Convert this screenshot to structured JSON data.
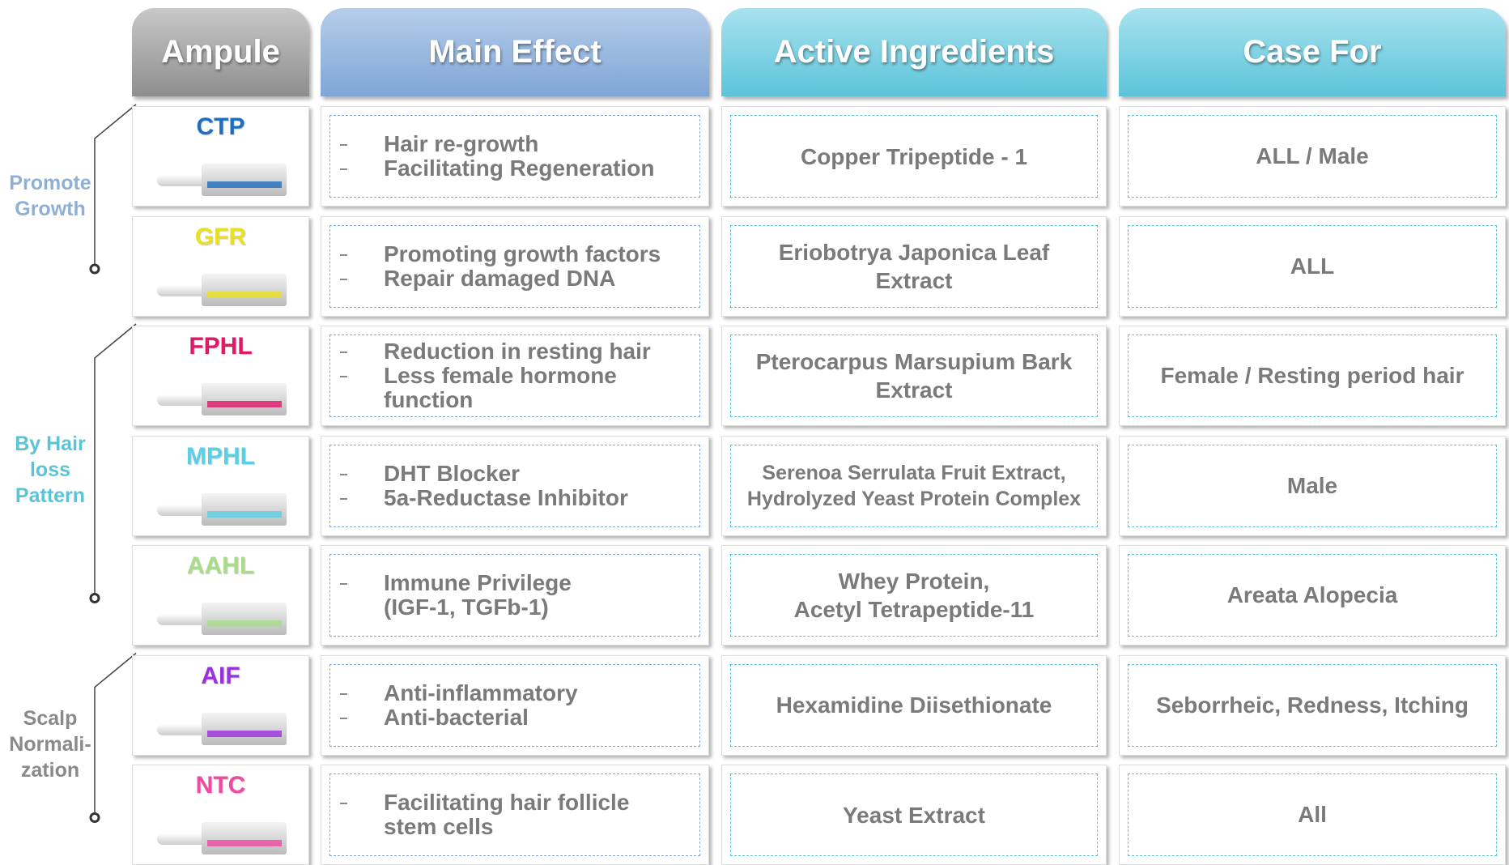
{
  "header": [
    "Ampule",
    "Main Effect",
    "Active Ingredients",
    "Case For"
  ],
  "groups": [
    {
      "label": [
        "Promote",
        "Growth"
      ],
      "color": "#8fb0d4",
      "rows": [
        {
          "code": "CTP",
          "color": "#1f6fc0",
          "effects": [
            [
              "Hair re-growth"
            ],
            [
              "Facilitating Regeneration"
            ]
          ],
          "ingredients": [
            "Copper Tripeptide - 1"
          ],
          "case": "ALL / Male"
        },
        {
          "code": "GFR",
          "color": "#e8e020",
          "effects": [
            [
              "Promoting growth factors"
            ],
            [
              "Repair damaged DNA"
            ]
          ],
          "ingredients": [
            "Eriobotrya Japonica Leaf",
            "Extract"
          ],
          "case": "ALL"
        }
      ]
    },
    {
      "label": [
        "By Hair",
        "loss",
        "Pattern"
      ],
      "color": "#5bc3d6",
      "rows": [
        {
          "code": "FPHL",
          "color": "#e0186a",
          "effects": [
            [
              "Reduction in resting hair"
            ],
            [
              "Less female hormone",
              "function"
            ]
          ],
          "ingredients": [
            "Pterocarpus Marsupium Bark",
            "Extract"
          ],
          "case": "Female / Resting period hair"
        },
        {
          "code": "MPHL",
          "color": "#5ad0e6",
          "effects": [
            [
              "DHT Blocker"
            ],
            [
              "5a-Reductase Inhibitor"
            ]
          ],
          "ingredients": [
            "Serenoa Serrulata Fruit Extract,",
            "Hydrolyzed Yeast Protein Complex"
          ],
          "case": "Male"
        },
        {
          "code": "AAHL",
          "color": "#a8dc88",
          "effects": [
            [
              "Immune Privilege",
              "(IGF-1, TGFb-1)"
            ]
          ],
          "ingredients": [
            "Whey Protein,",
            "Acetyl Tetrapeptide-11"
          ],
          "case": "Areata Alopecia"
        }
      ]
    },
    {
      "label": [
        "Scalp",
        "Normali-",
        "zation"
      ],
      "color": "#8a8a8a",
      "rows": [
        {
          "code": "AIF",
          "color": "#9b30e0",
          "effects": [
            [
              "Anti-inflammatory"
            ],
            [
              "Anti-bacterial"
            ]
          ],
          "ingredients": [
            "Hexamidine Diisethionate"
          ],
          "case": "Seborrheic, Redness, Itching"
        },
        {
          "code": "NTC",
          "color": "#ee4aa0",
          "effects": [
            [
              "Facilitating hair follicle",
              "stem cells"
            ]
          ],
          "ingredients": [
            "Yeast Extract"
          ],
          "case": "All"
        }
      ]
    }
  ]
}
